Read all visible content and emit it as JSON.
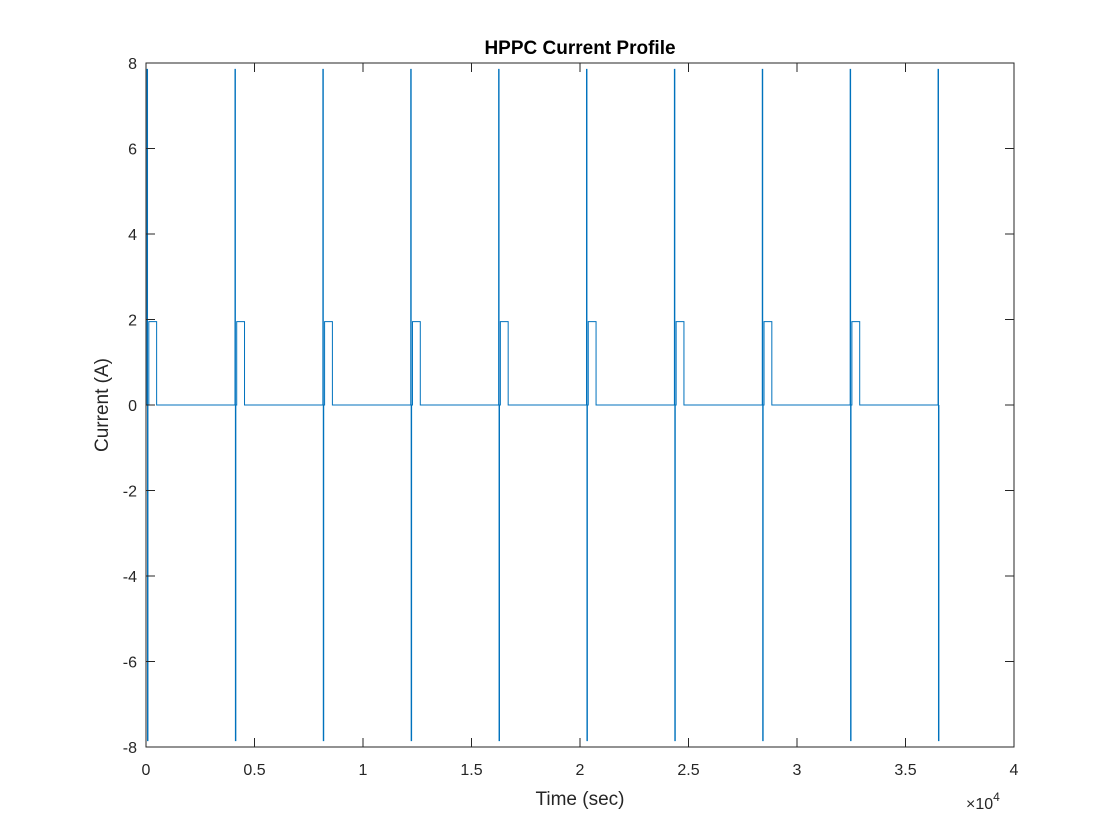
{
  "chart_data": {
    "type": "line",
    "title": "HPPC Current Profile",
    "xlabel": "Time (sec)",
    "ylabel": "Current (A)",
    "xlim": [
      0,
      40000
    ],
    "ylim": [
      -8,
      8
    ],
    "x_ticks": [
      0,
      5000,
      10000,
      15000,
      20000,
      25000,
      30000,
      35000,
      40000
    ],
    "x_tick_labels": [
      "0",
      "0.5",
      "1",
      "1.5",
      "2",
      "2.5",
      "3",
      "3.5",
      "4"
    ],
    "x_exponent_label": "×10",
    "x_exponent_power": "4",
    "y_ticks": [
      -8,
      -6,
      -4,
      -2,
      0,
      2,
      4,
      6,
      8
    ],
    "y_tick_labels": [
      "-8",
      "-6",
      "-4",
      "-2",
      "0",
      "2",
      "4",
      "6",
      "8"
    ],
    "grid": false,
    "box": true,
    "line_color": "#0072BD",
    "axis_color": "#262626",
    "series": [
      {
        "pulse_starts": [
          50,
          4100,
          8150,
          12200,
          16250,
          20300,
          24350,
          28400,
          32450,
          36500
        ],
        "pulse_peak": 7.85,
        "pulse_trough": -7.85,
        "pulse_duration": 40,
        "charge_current": 1.95,
        "charge_start_offset": 80,
        "charge_duration": 360,
        "rest_current": 0,
        "end_time": 36500
      }
    ]
  }
}
